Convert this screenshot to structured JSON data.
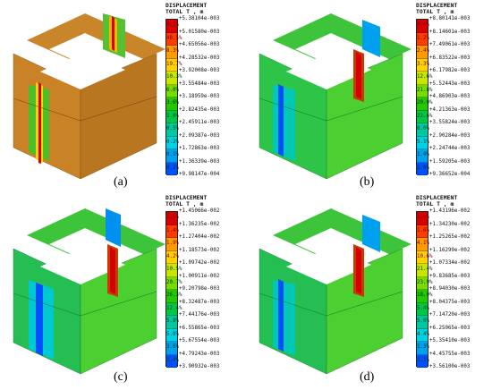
{
  "legend_colors": [
    "#d70000",
    "#ff3c00",
    "#ff9b00",
    "#ffd200",
    "#c8e600",
    "#78dc00",
    "#23c800",
    "#00c846",
    "#00c8a0",
    "#00d2e6",
    "#00a0f0",
    "#0050ff",
    "#0000d2"
  ],
  "panels": [
    {
      "id": "a",
      "caption": "(a)",
      "legend": {
        "title1": "DISPLACEMENT",
        "title2": "TOTAL T , m",
        "values": [
          "+5.38104e-003",
          "+5.01580e-003",
          "+4.65056e-003",
          "+4.28532e-003",
          "+3.92008e-003",
          "+3.55484e-003",
          "+3.18959e-003",
          "+2.82435e-003",
          "+2.45911e-003",
          "+2.09387e-003",
          "+1.72863e-003",
          "+1.36339e-003",
          "+9.98147e-004"
        ],
        "percents": [
          "0.1%",
          "48.5%",
          "8.3%",
          "19.7%",
          "10.3%",
          "6.0%",
          "3.6%",
          "1.0%",
          "0.5%",
          "0.2%",
          "0.1%",
          "0.2%"
        ]
      }
    },
    {
      "id": "b",
      "caption": "(b)",
      "legend": {
        "title1": "DISPLACEMENT",
        "title2": "TOTAL T , m",
        "values": [
          "+8.80141e-003",
          "+8.14601e-003",
          "+7.49061e-003",
          "+6.83522e-003",
          "+6.17982e-003",
          "+5.52443e-003",
          "+4.86903e-003",
          "+4.21363e-003",
          "+3.55824e-003",
          "+2.90284e-003",
          "+2.24744e-003",
          "+1.59205e-003",
          "+9.36652e-004"
        ],
        "percents": [
          "0.6%",
          "1.2%",
          "2.4%",
          "3.3%",
          "12.6%",
          "21.8%",
          "20.0%",
          "22.6%",
          "8.0%",
          "5.1%",
          "1.4%",
          "1.0%"
        ]
      }
    },
    {
      "id": "c",
      "caption": "(c)",
      "legend": {
        "title1": "DISPLACEMENT",
        "title2": "TOTAL T , m",
        "values": [
          "+1.45066e-002",
          "+1.36235e-002",
          "+1.27404e-002",
          "+1.18573e-002",
          "+1.09742e-002",
          "+1.00911e-002",
          "+9.20798e-003",
          "+8.32487e-003",
          "+7.44176e-003",
          "+6.55865e-003",
          "+5.67554e-003",
          "+4.79243e-003",
          "+3.90932e-003"
        ],
        "percents": [
          "1.5%",
          "1.4%",
          "1.9%",
          "4.2%",
          "10.5%",
          "20.7%",
          "26.3%",
          "12.4%",
          "5.8%",
          "5.8%",
          "3.6%",
          "1.4%"
        ]
      }
    },
    {
      "id": "d",
      "caption": "(d)",
      "legend": {
        "title1": "DISPLACEMENT",
        "title2": "TOTAL T , m",
        "values": [
          "+1.43196e-002",
          "+1.34230e-002",
          "+1.25265e-002",
          "+1.16299e-002",
          "+1.07334e-002",
          "+9.83685e-003",
          "+8.94030e-003",
          "+8.04375e-003",
          "+7.14720e-003",
          "+6.25065e-003",
          "+5.35410e-003",
          "+4.45755e-003",
          "+3.56100e-003"
        ],
        "percents": [
          "1.0%",
          "1.6%",
          "4.1%",
          "10.6%",
          "21.4%",
          "23.9%",
          "18.9%",
          "5.4%",
          "5.6%",
          "4.4%",
          "1.3%",
          "1.1%"
        ]
      }
    }
  ]
}
